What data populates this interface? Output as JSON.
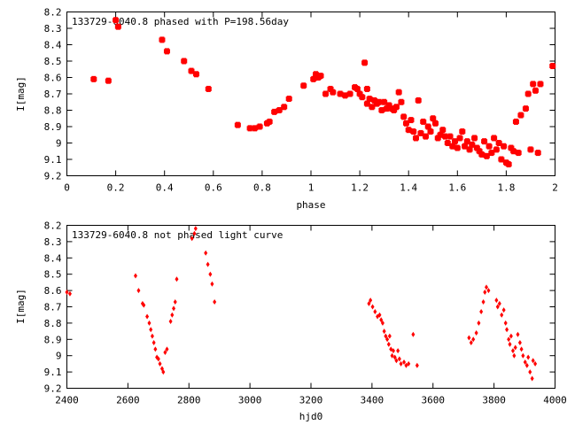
{
  "chart_data": [
    {
      "type": "scatter",
      "title": "133729-6040.8 phased with P=198.56day",
      "xlabel": "phase",
      "ylabel": "I[mag]",
      "xlim": [
        0,
        2
      ],
      "ylim": [
        8.2,
        9.2
      ],
      "y_inverted": true,
      "xticks": [
        "0",
        "0.2",
        "0.4",
        "0.6",
        "0.8",
        "1",
        "1.2",
        "1.4",
        "1.6",
        "1.8",
        "2"
      ],
      "yticks": [
        "8.2",
        "8.3",
        "8.4",
        "8.5",
        "8.6",
        "8.7",
        "8.8",
        "8.9",
        "9",
        "9.1",
        "9.2"
      ],
      "grid": false,
      "marker_color": "#ff0000",
      "series": [
        {
          "points": [
            [
              0.11,
              8.61
            ],
            [
              0.17,
              8.62
            ],
            [
              0.2,
              8.25
            ],
            [
              0.21,
              8.29
            ],
            [
              0.39,
              8.37
            ],
            [
              0.41,
              8.44
            ],
            [
              0.48,
              8.5
            ],
            [
              0.51,
              8.56
            ],
            [
              0.53,
              8.58
            ],
            [
              0.58,
              8.67
            ],
            [
              0.7,
              8.89
            ],
            [
              0.75,
              8.91
            ],
            [
              0.77,
              8.91
            ],
            [
              0.79,
              8.9
            ],
            [
              0.82,
              8.88
            ],
            [
              0.83,
              8.87
            ],
            [
              0.85,
              8.81
            ],
            [
              0.87,
              8.8
            ],
            [
              0.89,
              8.78
            ],
            [
              0.91,
              8.73
            ],
            [
              0.97,
              8.65
            ],
            [
              1.01,
              8.61
            ],
            [
              1.02,
              8.58
            ],
            [
              1.03,
              8.6
            ],
            [
              1.04,
              8.59
            ],
            [
              1.06,
              8.7
            ],
            [
              1.08,
              8.67
            ],
            [
              1.09,
              8.69
            ],
            [
              1.12,
              8.7
            ],
            [
              1.14,
              8.71
            ],
            [
              1.16,
              8.7
            ],
            [
              1.18,
              8.66
            ],
            [
              1.19,
              8.67
            ],
            [
              1.2,
              8.7
            ],
            [
              1.21,
              8.72
            ],
            [
              1.22,
              8.51
            ],
            [
              1.23,
              8.67
            ],
            [
              1.23,
              8.76
            ],
            [
              1.24,
              8.73
            ],
            [
              1.25,
              8.78
            ],
            [
              1.26,
              8.74
            ],
            [
              1.27,
              8.76
            ],
            [
              1.28,
              8.75
            ],
            [
              1.29,
              8.8
            ],
            [
              1.3,
              8.75
            ],
            [
              1.31,
              8.79
            ],
            [
              1.32,
              8.77
            ],
            [
              1.33,
              8.79
            ],
            [
              1.34,
              8.8
            ],
            [
              1.35,
              8.78
            ],
            [
              1.36,
              8.69
            ],
            [
              1.37,
              8.75
            ],
            [
              1.38,
              8.84
            ],
            [
              1.39,
              8.88
            ],
            [
              1.4,
              8.92
            ],
            [
              1.41,
              8.86
            ],
            [
              1.42,
              8.93
            ],
            [
              1.43,
              8.97
            ],
            [
              1.44,
              8.74
            ],
            [
              1.45,
              8.94
            ],
            [
              1.46,
              8.87
            ],
            [
              1.47,
              8.96
            ],
            [
              1.48,
              8.9
            ],
            [
              1.49,
              8.93
            ],
            [
              1.5,
              8.85
            ],
            [
              1.51,
              8.88
            ],
            [
              1.52,
              8.97
            ],
            [
              1.53,
              8.95
            ],
            [
              1.54,
              8.92
            ],
            [
              1.55,
              8.96
            ],
            [
              1.56,
              9.0
            ],
            [
              1.57,
              8.96
            ],
            [
              1.58,
              9.02
            ],
            [
              1.59,
              8.99
            ],
            [
              1.6,
              9.03
            ],
            [
              1.61,
              8.97
            ],
            [
              1.62,
              8.93
            ],
            [
              1.63,
              9.02
            ],
            [
              1.64,
              8.99
            ],
            [
              1.65,
              9.04
            ],
            [
              1.66,
              9.01
            ],
            [
              1.67,
              8.97
            ],
            [
              1.68,
              9.03
            ],
            [
              1.69,
              9.05
            ],
            [
              1.7,
              9.07
            ],
            [
              1.71,
              8.99
            ],
            [
              1.72,
              9.08
            ],
            [
              1.73,
              9.02
            ],
            [
              1.74,
              9.06
            ],
            [
              1.75,
              8.97
            ],
            [
              1.76,
              9.04
            ],
            [
              1.77,
              9.0
            ],
            [
              1.78,
              9.1
            ],
            [
              1.79,
              9.02
            ],
            [
              1.8,
              9.12
            ],
            [
              1.81,
              9.13
            ],
            [
              1.82,
              9.03
            ],
            [
              1.83,
              9.05
            ],
            [
              1.84,
              8.87
            ],
            [
              1.85,
              9.06
            ],
            [
              1.86,
              8.83
            ],
            [
              1.88,
              8.79
            ],
            [
              1.89,
              8.7
            ],
            [
              1.9,
              9.04
            ],
            [
              1.91,
              8.64
            ],
            [
              1.92,
              8.68
            ],
            [
              1.93,
              9.06
            ],
            [
              1.94,
              8.64
            ],
            [
              1.99,
              8.53
            ]
          ]
        }
      ]
    },
    {
      "type": "scatter",
      "title": "133729-6040.8 not phased light curve",
      "xlabel": "hjd0",
      "ylabel": "I[mag]",
      "xlim": [
        2400,
        4000
      ],
      "ylim": [
        8.2,
        9.2
      ],
      "y_inverted": true,
      "xticks": [
        "2400",
        "2600",
        "2800",
        "3000",
        "3200",
        "3400",
        "3600",
        "3800",
        "4000"
      ],
      "yticks": [
        "8.2",
        "8.3",
        "8.4",
        "8.5",
        "8.6",
        "8.7",
        "8.8",
        "8.9",
        "9",
        "9.1",
        "9.2"
      ],
      "grid": false,
      "marker_color": "#ff0000",
      "series": [
        {
          "points": [
            [
              2400,
              8.61
            ],
            [
              2410,
              8.62
            ],
            [
              2625,
              8.51
            ],
            [
              2635,
              8.6
            ],
            [
              2648,
              8.68
            ],
            [
              2652,
              8.69
            ],
            [
              2663,
              8.76
            ],
            [
              2670,
              8.8
            ],
            [
              2675,
              8.84
            ],
            [
              2680,
              8.88
            ],
            [
              2685,
              8.92
            ],
            [
              2690,
              8.96
            ],
            [
              2695,
              9.01
            ],
            [
              2700,
              9.02
            ],
            [
              2705,
              9.05
            ],
            [
              2712,
              9.08
            ],
            [
              2716,
              9.1
            ],
            [
              2722,
              8.98
            ],
            [
              2728,
              8.96
            ],
            [
              2740,
              8.79
            ],
            [
              2745,
              8.75
            ],
            [
              2750,
              8.71
            ],
            [
              2755,
              8.67
            ],
            [
              2760,
              8.53
            ],
            [
              2810,
              8.28
            ],
            [
              2818,
              8.25
            ],
            [
              2822,
              8.22
            ],
            [
              2855,
              8.37
            ],
            [
              2862,
              8.44
            ],
            [
              2870,
              8.5
            ],
            [
              2876,
              8.56
            ],
            [
              2884,
              8.67
            ],
            [
              3390,
              8.68
            ],
            [
              3395,
              8.66
            ],
            [
              3402,
              8.7
            ],
            [
              3410,
              8.73
            ],
            [
              3418,
              8.76
            ],
            [
              3425,
              8.75
            ],
            [
              3430,
              8.78
            ],
            [
              3435,
              8.8
            ],
            [
              3440,
              8.85
            ],
            [
              3445,
              8.88
            ],
            [
              3450,
              8.9
            ],
            [
              3455,
              8.93
            ],
            [
              3458,
              8.88
            ],
            [
              3462,
              8.96
            ],
            [
              3466,
              9.0
            ],
            [
              3470,
              8.97
            ],
            [
              3475,
              9.01
            ],
            [
              3480,
              9.03
            ],
            [
              3485,
              8.97
            ],
            [
              3490,
              9.02
            ],
            [
              3495,
              9.05
            ],
            [
              3505,
              9.04
            ],
            [
              3512,
              9.06
            ],
            [
              3520,
              9.05
            ],
            [
              3535,
              8.87
            ],
            [
              3548,
              9.06
            ],
            [
              3718,
              8.89
            ],
            [
              3725,
              8.92
            ],
            [
              3732,
              8.9
            ],
            [
              3742,
              8.86
            ],
            [
              3750,
              8.8
            ],
            [
              3758,
              8.73
            ],
            [
              3765,
              8.67
            ],
            [
              3770,
              8.61
            ],
            [
              3775,
              8.58
            ],
            [
              3782,
              8.6
            ],
            [
              3808,
              8.66
            ],
            [
              3812,
              8.7
            ],
            [
              3818,
              8.68
            ],
            [
              3825,
              8.75
            ],
            [
              3832,
              8.72
            ],
            [
              3838,
              8.8
            ],
            [
              3842,
              8.84
            ],
            [
              3848,
              8.9
            ],
            [
              3852,
              8.93
            ],
            [
              3856,
              8.88
            ],
            [
              3862,
              8.97
            ],
            [
              3866,
              9.0
            ],
            [
              3870,
              8.95
            ],
            [
              3878,
              8.87
            ],
            [
              3885,
              8.92
            ],
            [
              3890,
              8.96
            ],
            [
              3895,
              9.0
            ],
            [
              3902,
              9.04
            ],
            [
              3908,
              9.06
            ],
            [
              3912,
              9.01
            ],
            [
              3918,
              9.1
            ],
            [
              3925,
              9.14
            ],
            [
              3928,
              9.03
            ],
            [
              3935,
              9.05
            ]
          ]
        }
      ]
    }
  ]
}
